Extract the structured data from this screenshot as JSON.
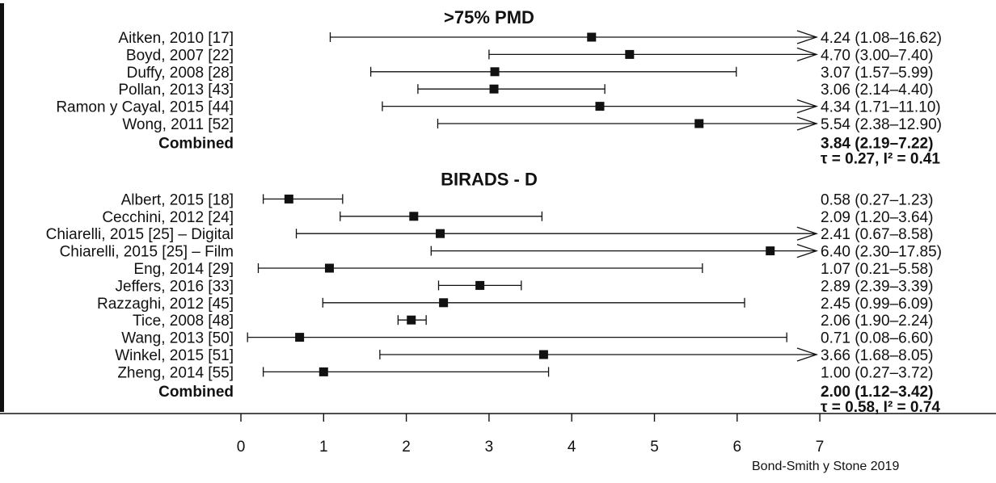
{
  "chart_data": {
    "type": "forest",
    "xlim": [
      0,
      7
    ],
    "x_ticks": [
      "0",
      "1",
      "2",
      "3",
      "4",
      "5",
      "6",
      "7"
    ],
    "groups": [
      {
        "title": ">75% PMD",
        "studies": [
          {
            "label": "Aitken, 2010 [17]",
            "estimate": 4.24,
            "lower": 1.08,
            "upper": 16.62,
            "text": "4.24 (1.08–16.62)"
          },
          {
            "label": "Boyd, 2007 [22]",
            "estimate": 4.7,
            "lower": 3.0,
            "upper": 7.4,
            "text": "4.70 (3.00–7.40)"
          },
          {
            "label": "Duffy, 2008 [28]",
            "estimate": 3.07,
            "lower": 1.57,
            "upper": 5.99,
            "text": "3.07 (1.57–5.99)"
          },
          {
            "label": "Pollan, 2013 [43]",
            "estimate": 3.06,
            "lower": 2.14,
            "upper": 4.4,
            "text": "3.06 (2.14–4.40)"
          },
          {
            "label": "Ramon y Cayal, 2015 [44]",
            "estimate": 4.34,
            "lower": 1.71,
            "upper": 11.1,
            "text": "4.34 (1.71–11.10)"
          },
          {
            "label": "Wong, 2011 [52]",
            "estimate": 5.54,
            "lower": 2.38,
            "upper": 12.9,
            "text": "5.54 (2.38–12.90)"
          }
        ],
        "combined": {
          "label": "Combined",
          "text": "3.84 (2.19–7.22)",
          "heterogeneity": "τ = 0.27, I² = 0.41"
        }
      },
      {
        "title": "BIRADS - D",
        "studies": [
          {
            "label": "Albert, 2015 [18]",
            "estimate": 0.58,
            "lower": 0.27,
            "upper": 1.23,
            "text": "0.58 (0.27–1.23)"
          },
          {
            "label": "Cecchini, 2012 [24]",
            "estimate": 2.09,
            "lower": 1.2,
            "upper": 3.64,
            "text": "2.09 (1.20–3.64)"
          },
          {
            "label": "Chiarelli, 2015 [25] – Digital",
            "estimate": 2.41,
            "lower": 0.67,
            "upper": 8.58,
            "text": "2.41 (0.67–8.58)"
          },
          {
            "label": "Chiarelli, 2015 [25] – Film",
            "estimate": 6.4,
            "lower": 2.3,
            "upper": 17.85,
            "text": "6.40 (2.30–17.85)"
          },
          {
            "label": "Eng, 2014 [29]",
            "estimate": 1.07,
            "lower": 0.21,
            "upper": 5.58,
            "text": "1.07 (0.21–5.58)"
          },
          {
            "label": "Jeffers, 2016 [33]",
            "estimate": 2.89,
            "lower": 2.39,
            "upper": 3.39,
            "text": "2.89 (2.39–3.39)"
          },
          {
            "label": "Razzaghi, 2012 [45]",
            "estimate": 2.45,
            "lower": 0.99,
            "upper": 6.09,
            "text": "2.45 (0.99–6.09)"
          },
          {
            "label": "Tice, 2008 [48]",
            "estimate": 2.06,
            "lower": 1.9,
            "upper": 2.24,
            "text": "2.06 (1.90–2.24)"
          },
          {
            "label": "Wang, 2013 [50]",
            "estimate": 0.71,
            "lower": 0.08,
            "upper": 6.6,
            "text": "0.71 (0.08–6.60)"
          },
          {
            "label": "Winkel, 2015 [51]",
            "estimate": 3.66,
            "lower": 1.68,
            "upper": 8.05,
            "text": "3.66 (1.68–8.05)"
          },
          {
            "label": "Zheng, 2014 [55]",
            "estimate": 1.0,
            "lower": 0.27,
            "upper": 3.72,
            "text": "1.00 (0.27–3.72)"
          }
        ],
        "combined": {
          "label": "Combined",
          "text": "2.00 (1.12–3.42)",
          "heterogeneity": "τ = 0.58, I² = 0.74"
        }
      }
    ],
    "credit": "Bond-Smith y Stone  2019"
  }
}
